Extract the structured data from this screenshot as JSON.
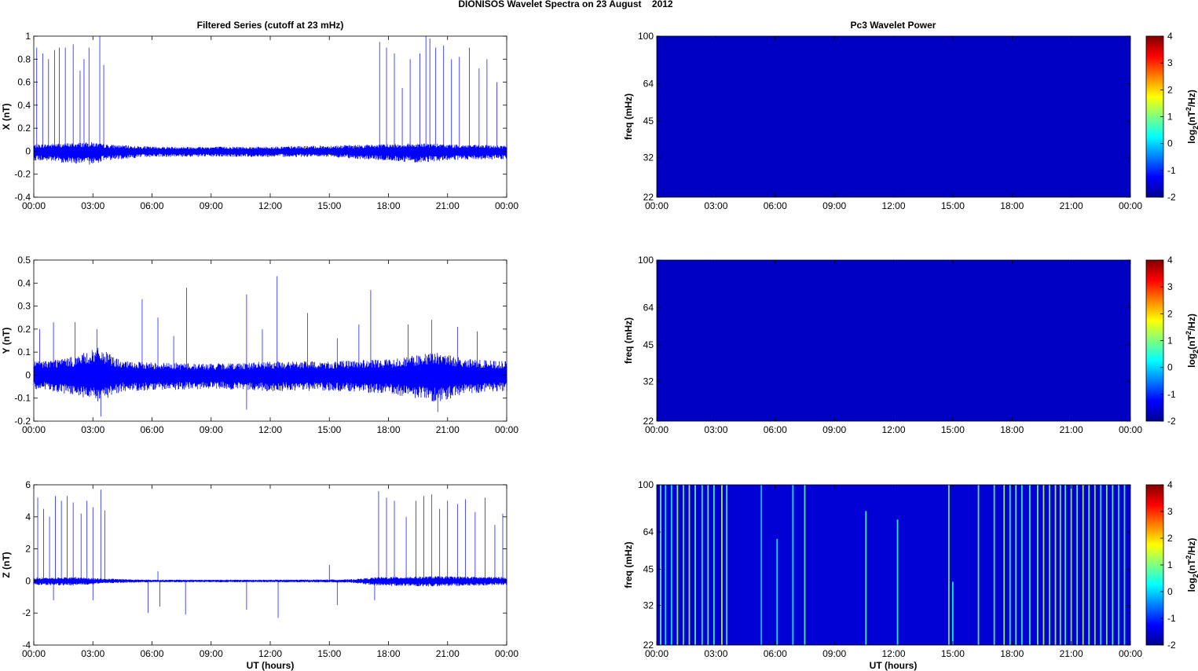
{
  "figure": {
    "title": "DIONISOS Wavelet Spectra on 23 August    2012",
    "left_title": "Filtered Series (cutoff at 23 mHz)",
    "right_title": "Pc3 Wavelet Power",
    "xlabel": "UT (hours)"
  },
  "chart_data": [
    {
      "type": "line",
      "component": "X",
      "ylabel": "X (nT)",
      "xlim": [
        0,
        24
      ],
      "ylim": [
        -0.4,
        1
      ],
      "yticks": [
        -0.4,
        -0.2,
        0,
        0.2,
        0.4,
        0.6,
        0.8,
        1
      ],
      "ytick_labels": [
        "-0.4",
        "-0.2",
        "0",
        "0.2",
        "0.4",
        "0.6",
        "0.8",
        "1"
      ],
      "xticks": [
        0,
        3,
        6,
        9,
        12,
        15,
        18,
        21,
        24
      ],
      "xtick_labels": [
        "00:00",
        "03:00",
        "06:00",
        "09:00",
        "12:00",
        "15:00",
        "18:00",
        "21:00",
        "00:00"
      ],
      "line_color": "#0000ff",
      "envelope": [
        {
          "t": 0.0,
          "max": 0.06,
          "min": -0.08
        },
        {
          "t": 1.5,
          "max": 0.07,
          "min": -0.1
        },
        {
          "t": 3.0,
          "max": 0.08,
          "min": -0.12
        },
        {
          "t": 3.6,
          "max": 0.06,
          "min": -0.08
        },
        {
          "t": 6.0,
          "max": 0.04,
          "min": -0.05
        },
        {
          "t": 9.0,
          "max": 0.04,
          "min": -0.05
        },
        {
          "t": 12.0,
          "max": 0.04,
          "min": -0.05
        },
        {
          "t": 15.0,
          "max": 0.05,
          "min": -0.05
        },
        {
          "t": 17.5,
          "max": 0.06,
          "min": -0.08
        },
        {
          "t": 19.5,
          "max": 0.07,
          "min": -0.1
        },
        {
          "t": 21.0,
          "max": 0.06,
          "min": -0.08
        },
        {
          "t": 24.0,
          "max": 0.05,
          "min": -0.07
        }
      ],
      "spikes": [
        {
          "t": 0.15,
          "v": 0.9
        },
        {
          "t": 0.45,
          "v": 0.85
        },
        {
          "t": 0.75,
          "v": 0.8
        },
        {
          "t": 1.05,
          "v": 0.88
        },
        {
          "t": 1.3,
          "v": 0.9
        },
        {
          "t": 1.6,
          "v": 0.9
        },
        {
          "t": 2.0,
          "v": 0.93
        },
        {
          "t": 2.35,
          "v": 0.7
        },
        {
          "t": 2.55,
          "v": 0.8
        },
        {
          "t": 2.8,
          "v": 0.9
        },
        {
          "t": 3.35,
          "v": 1.0
        },
        {
          "t": 3.55,
          "v": 0.75
        },
        {
          "t": 17.55,
          "v": 0.95
        },
        {
          "t": 17.9,
          "v": 0.9
        },
        {
          "t": 18.3,
          "v": 0.85
        },
        {
          "t": 18.7,
          "v": 0.55
        },
        {
          "t": 19.1,
          "v": 0.8
        },
        {
          "t": 19.6,
          "v": 0.85
        },
        {
          "t": 19.9,
          "v": 1.0
        },
        {
          "t": 20.1,
          "v": 0.98
        },
        {
          "t": 20.4,
          "v": 0.9
        },
        {
          "t": 20.8,
          "v": 0.92
        },
        {
          "t": 21.2,
          "v": 0.8
        },
        {
          "t": 21.6,
          "v": 0.82
        },
        {
          "t": 22.1,
          "v": 0.9
        },
        {
          "t": 22.6,
          "v": 0.72
        },
        {
          "t": 23.0,
          "v": 0.8
        },
        {
          "t": 23.5,
          "v": 0.6
        }
      ]
    },
    {
      "type": "line",
      "component": "Y",
      "ylabel": "Y (nT)",
      "xlim": [
        0,
        24
      ],
      "ylim": [
        -0.2,
        0.5
      ],
      "yticks": [
        -0.2,
        -0.1,
        0,
        0.1,
        0.2,
        0.3,
        0.4,
        0.5
      ],
      "ytick_labels": [
        "-0.2",
        "-0.1",
        "0",
        "0.1",
        "0.2",
        "0.3",
        "0.4",
        "0.5"
      ],
      "xticks": [
        0,
        3,
        6,
        9,
        12,
        15,
        18,
        21,
        24
      ],
      "xtick_labels": [
        "00:00",
        "03:00",
        "06:00",
        "09:00",
        "12:00",
        "15:00",
        "18:00",
        "21:00",
        "00:00"
      ],
      "line_color": "#0000ff",
      "envelope": [
        {
          "t": 0.0,
          "max": 0.06,
          "min": -0.06
        },
        {
          "t": 2.0,
          "max": 0.08,
          "min": -0.09
        },
        {
          "t": 3.3,
          "max": 0.12,
          "min": -0.12
        },
        {
          "t": 4.5,
          "max": 0.06,
          "min": -0.07
        },
        {
          "t": 9.0,
          "max": 0.05,
          "min": -0.06
        },
        {
          "t": 12.0,
          "max": 0.06,
          "min": -0.07
        },
        {
          "t": 15.0,
          "max": 0.06,
          "min": -0.07
        },
        {
          "t": 18.0,
          "max": 0.07,
          "min": -0.08
        },
        {
          "t": 20.5,
          "max": 0.1,
          "min": -0.12
        },
        {
          "t": 22.0,
          "max": 0.07,
          "min": -0.08
        },
        {
          "t": 24.0,
          "max": 0.06,
          "min": -0.07
        }
      ],
      "spikes": [
        {
          "t": 0.3,
          "v": 0.2
        },
        {
          "t": 1.0,
          "v": 0.23
        },
        {
          "t": 2.1,
          "v": 0.23
        },
        {
          "t": 3.2,
          "v": 0.2
        },
        {
          "t": 5.5,
          "v": 0.33
        },
        {
          "t": 6.3,
          "v": 0.25
        },
        {
          "t": 7.1,
          "v": 0.17
        },
        {
          "t": 7.75,
          "v": 0.38
        },
        {
          "t": 10.8,
          "v": 0.35
        },
        {
          "t": 11.6,
          "v": 0.2
        },
        {
          "t": 12.35,
          "v": 0.43
        },
        {
          "t": 13.9,
          "v": 0.27
        },
        {
          "t": 15.4,
          "v": 0.16
        },
        {
          "t": 16.5,
          "v": 0.22
        },
        {
          "t": 17.1,
          "v": 0.37
        },
        {
          "t": 19.0,
          "v": 0.22
        },
        {
          "t": 20.2,
          "v": 0.24
        },
        {
          "t": 21.5,
          "v": 0.21
        },
        {
          "t": 22.5,
          "v": 0.19
        },
        {
          "t": 10.8,
          "v": -0.15
        },
        {
          "t": 3.4,
          "v": -0.18
        },
        {
          "t": 20.5,
          "v": -0.16
        }
      ]
    },
    {
      "type": "line",
      "component": "Z",
      "ylabel": "Z (nT)",
      "xlim": [
        0,
        24
      ],
      "ylim": [
        -4,
        6
      ],
      "yticks": [
        -4,
        -2,
        0,
        2,
        4,
        6
      ],
      "ytick_labels": [
        "-4",
        "-2",
        "0",
        "2",
        "4",
        "6"
      ],
      "xticks": [
        0,
        3,
        6,
        9,
        12,
        15,
        18,
        21,
        24
      ],
      "xtick_labels": [
        "00:00",
        "03:00",
        "06:00",
        "09:00",
        "12:00",
        "15:00",
        "18:00",
        "21:00",
        "00:00"
      ],
      "line_color": "#0000ff",
      "envelope": [
        {
          "t": 0.0,
          "max": 0.2,
          "min": -0.25
        },
        {
          "t": 2.0,
          "max": 0.25,
          "min": -0.3
        },
        {
          "t": 3.6,
          "max": 0.15,
          "min": -0.15
        },
        {
          "t": 6.0,
          "max": 0.08,
          "min": -0.08
        },
        {
          "t": 12.0,
          "max": 0.08,
          "min": -0.08
        },
        {
          "t": 16.0,
          "max": 0.1,
          "min": -0.1
        },
        {
          "t": 17.5,
          "max": 0.25,
          "min": -0.3
        },
        {
          "t": 20.5,
          "max": 0.3,
          "min": -0.35
        },
        {
          "t": 24.0,
          "max": 0.25,
          "min": -0.25
        }
      ],
      "spikes": [
        {
          "t": 0.2,
          "v": 5.2
        },
        {
          "t": 0.5,
          "v": 4.5
        },
        {
          "t": 0.8,
          "v": 4.0
        },
        {
          "t": 1.1,
          "v": 5.3
        },
        {
          "t": 1.4,
          "v": 5.0
        },
        {
          "t": 1.7,
          "v": 5.3
        },
        {
          "t": 2.0,
          "v": 4.9
        },
        {
          "t": 2.4,
          "v": 4.2
        },
        {
          "t": 2.7,
          "v": 5.0
        },
        {
          "t": 3.0,
          "v": 4.6
        },
        {
          "t": 3.4,
          "v": 5.7
        },
        {
          "t": 3.6,
          "v": 4.4
        },
        {
          "t": 17.5,
          "v": 5.6
        },
        {
          "t": 17.9,
          "v": 5.2
        },
        {
          "t": 18.3,
          "v": 5.0
        },
        {
          "t": 18.9,
          "v": 4.0
        },
        {
          "t": 19.4,
          "v": 5.0
        },
        {
          "t": 19.8,
          "v": 5.3
        },
        {
          "t": 20.2,
          "v": 5.4
        },
        {
          "t": 20.6,
          "v": 4.5
        },
        {
          "t": 21.0,
          "v": 5.0
        },
        {
          "t": 21.5,
          "v": 4.8
        },
        {
          "t": 21.9,
          "v": 5.1
        },
        {
          "t": 22.4,
          "v": 4.3
        },
        {
          "t": 22.9,
          "v": 5.2
        },
        {
          "t": 23.4,
          "v": 3.5
        },
        {
          "t": 23.8,
          "v": 4.2
        },
        {
          "t": 5.8,
          "v": -2.0
        },
        {
          "t": 6.3,
          "v": 0.6
        },
        {
          "t": 6.4,
          "v": -1.6
        },
        {
          "t": 7.7,
          "v": -2.1
        },
        {
          "t": 10.8,
          "v": -1.8
        },
        {
          "t": 12.4,
          "v": -2.3
        },
        {
          "t": 15.0,
          "v": 1.0
        },
        {
          "t": 15.4,
          "v": -1.5
        },
        {
          "t": 17.3,
          "v": -1.2
        },
        {
          "t": 1.0,
          "v": -1.2
        },
        {
          "t": 3.0,
          "v": -1.2
        }
      ]
    },
    {
      "type": "heatmap",
      "component": "X",
      "ylabel": "freq (mHz)",
      "xlim": [
        0,
        24
      ],
      "yscale": "log2",
      "ylim": [
        22,
        100
      ],
      "yticks": [
        22,
        32,
        45,
        64,
        100
      ],
      "ytick_labels": [
        "22",
        "32",
        "45",
        "64",
        "100"
      ],
      "xticks": [
        0,
        3,
        6,
        9,
        12,
        15,
        18,
        21,
        24
      ],
      "xtick_labels": [
        "00:00",
        "03:00",
        "06:00",
        "09:00",
        "12:00",
        "15:00",
        "18:00",
        "21:00",
        "00:00"
      ],
      "colormap": "jet",
      "clim": [
        -2,
        4
      ],
      "colorbar_ticks": [
        -2,
        -1,
        0,
        1,
        2,
        3,
        4
      ],
      "colorbar_tick_labels": [
        "-2",
        "-1",
        "0",
        "1",
        "2",
        "3",
        "4"
      ],
      "colorbar_label": "log2(nT^2/Hz)",
      "background_value": -1.6,
      "streaks": []
    },
    {
      "type": "heatmap",
      "component": "Y",
      "ylabel": "freq (mHz)",
      "xlim": [
        0,
        24
      ],
      "yscale": "log2",
      "ylim": [
        22,
        100
      ],
      "yticks": [
        22,
        32,
        45,
        64,
        100
      ],
      "ytick_labels": [
        "22",
        "32",
        "45",
        "64",
        "100"
      ],
      "xticks": [
        0,
        3,
        6,
        9,
        12,
        15,
        18,
        21,
        24
      ],
      "xtick_labels": [
        "00:00",
        "03:00",
        "06:00",
        "09:00",
        "12:00",
        "15:00",
        "18:00",
        "21:00",
        "00:00"
      ],
      "colormap": "jet",
      "clim": [
        -2,
        4
      ],
      "colorbar_ticks": [
        -2,
        -1,
        0,
        1,
        2,
        3,
        4
      ],
      "colorbar_tick_labels": [
        "-2",
        "-1",
        "0",
        "1",
        "2",
        "3",
        "4"
      ],
      "colorbar_label": "log2(nT^2/Hz)",
      "background_value": -1.6,
      "streaks": []
    },
    {
      "type": "heatmap",
      "component": "Z",
      "ylabel": "freq (mHz)",
      "xlim": [
        0,
        24
      ],
      "yscale": "log2",
      "ylim": [
        22,
        100
      ],
      "yticks": [
        22,
        32,
        45,
        64,
        100
      ],
      "ytick_labels": [
        "22",
        "32",
        "45",
        "64",
        "100"
      ],
      "xticks": [
        0,
        3,
        6,
        9,
        12,
        15,
        18,
        21,
        24
      ],
      "xtick_labels": [
        "00:00",
        "03:00",
        "06:00",
        "09:00",
        "12:00",
        "15:00",
        "18:00",
        "21:00",
        "00:00"
      ],
      "colormap": "jet",
      "clim": [
        -2,
        4
      ],
      "colorbar_ticks": [
        -2,
        -1,
        0,
        1,
        2,
        3,
        4
      ],
      "colorbar_tick_labels": [
        "-2",
        "-1",
        "0",
        "1",
        "2",
        "3",
        "4"
      ],
      "colorbar_label": "log2(nT^2/Hz)",
      "background_value": -1.5,
      "streaks": [
        {
          "t": 0.2,
          "fmax": 100,
          "v": 1.0
        },
        {
          "t": 0.45,
          "fmax": 100,
          "v": 0.5
        },
        {
          "t": 0.75,
          "fmax": 100,
          "v": 0.2
        },
        {
          "t": 1.05,
          "fmax": 100,
          "v": 1.2
        },
        {
          "t": 1.35,
          "fmax": 100,
          "v": 0.8
        },
        {
          "t": 1.65,
          "fmax": 100,
          "v": 1.3
        },
        {
          "t": 1.95,
          "fmax": 100,
          "v": 0.9
        },
        {
          "t": 2.3,
          "fmax": 100,
          "v": 0.6
        },
        {
          "t": 2.6,
          "fmax": 100,
          "v": 1.0
        },
        {
          "t": 2.9,
          "fmax": 100,
          "v": 0.7
        },
        {
          "t": 3.3,
          "fmax": 100,
          "v": 1.4
        },
        {
          "t": 3.55,
          "fmax": 100,
          "v": 0.8
        },
        {
          "t": 5.3,
          "fmax": 100,
          "v": 0.0
        },
        {
          "t": 6.1,
          "fmax": 60,
          "v": 0.3
        },
        {
          "t": 6.9,
          "fmax": 100,
          "v": 0.4
        },
        {
          "t": 7.5,
          "fmax": 100,
          "v": 0.8
        },
        {
          "t": 10.6,
          "fmax": 78,
          "v": 0.7
        },
        {
          "t": 12.2,
          "fmax": 72,
          "v": 0.5
        },
        {
          "t": 14.8,
          "fmax": 100,
          "v": 1.1
        },
        {
          "t": 15.0,
          "fmax": 40,
          "v": 0.4
        },
        {
          "t": 16.3,
          "fmax": 100,
          "v": 0.9
        },
        {
          "t": 17.1,
          "fmax": 100,
          "v": 0.8
        },
        {
          "t": 17.6,
          "fmax": 100,
          "v": 1.2
        },
        {
          "t": 17.9,
          "fmax": 100,
          "v": 0.6
        },
        {
          "t": 18.2,
          "fmax": 100,
          "v": 1.0
        },
        {
          "t": 18.5,
          "fmax": 100,
          "v": 0.5
        },
        {
          "t": 18.9,
          "fmax": 100,
          "v": 0.7
        },
        {
          "t": 19.3,
          "fmax": 100,
          "v": 1.0
        },
        {
          "t": 19.6,
          "fmax": 100,
          "v": 1.3
        },
        {
          "t": 19.9,
          "fmax": 100,
          "v": 0.8
        },
        {
          "t": 20.2,
          "fmax": 100,
          "v": 1.4
        },
        {
          "t": 20.45,
          "fmax": 100,
          "v": 1.1
        },
        {
          "t": 20.7,
          "fmax": 100,
          "v": 0.6
        },
        {
          "t": 21.0,
          "fmax": 100,
          "v": 1.2
        },
        {
          "t": 21.3,
          "fmax": 100,
          "v": 0.9
        },
        {
          "t": 21.6,
          "fmax": 100,
          "v": 1.3
        },
        {
          "t": 21.9,
          "fmax": 100,
          "v": 1.0
        },
        {
          "t": 22.2,
          "fmax": 100,
          "v": 1.2
        },
        {
          "t": 22.5,
          "fmax": 100,
          "v": 0.7
        },
        {
          "t": 22.8,
          "fmax": 100,
          "v": 1.1
        },
        {
          "t": 23.1,
          "fmax": 100,
          "v": 0.9
        },
        {
          "t": 23.4,
          "fmax": 100,
          "v": 0.5
        },
        {
          "t": 23.7,
          "fmax": 100,
          "v": 0.8
        }
      ]
    }
  ]
}
